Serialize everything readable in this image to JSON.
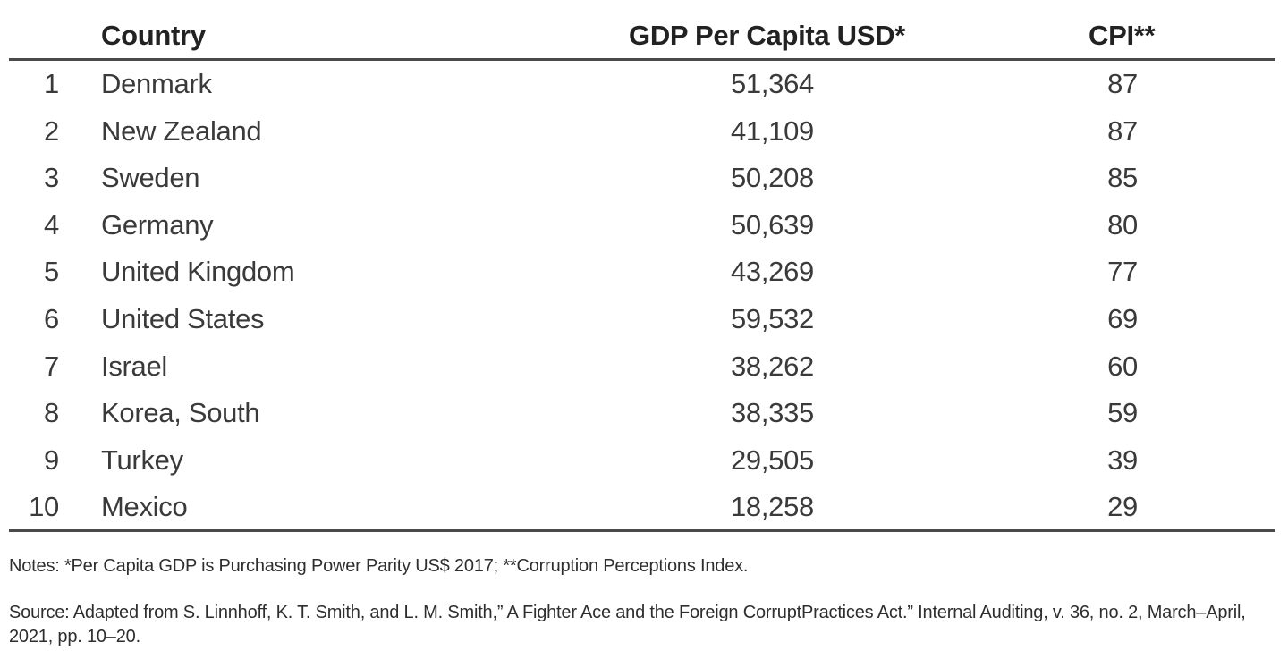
{
  "table": {
    "headers": {
      "country": "Country",
      "gdp": "GDP Per Capita USD*",
      "cpi": "CPI**"
    },
    "rows": [
      {
        "rank": "1",
        "country": "Denmark",
        "gdp": "51,364",
        "cpi": "87"
      },
      {
        "rank": "2",
        "country": "New Zealand",
        "gdp": "41,109",
        "cpi": "87"
      },
      {
        "rank": "3",
        "country": "Sweden",
        "gdp": "50,208",
        "cpi": "85"
      },
      {
        "rank": "4",
        "country": "Germany",
        "gdp": "50,639",
        "cpi": "80"
      },
      {
        "rank": "5",
        "country": "United Kingdom",
        "gdp": "43,269",
        "cpi": "77"
      },
      {
        "rank": "6",
        "country": "United States",
        "gdp": "59,532",
        "cpi": "69"
      },
      {
        "rank": "7",
        "country": "Israel",
        "gdp": "38,262",
        "cpi": "60"
      },
      {
        "rank": "8",
        "country": "Korea, South",
        "gdp": "38,335",
        "cpi": "59"
      },
      {
        "rank": "9",
        "country": "Turkey",
        "gdp": "29,505",
        "cpi": "39"
      },
      {
        "rank": "10",
        "country": "Mexico",
        "gdp": "18,258",
        "cpi": "29"
      }
    ]
  },
  "notes": "Notes: *Per Capita GDP is Purchasing Power Parity US$ 2017; **Corruption Perceptions Index.",
  "source": "Source: Adapted from S. Linnhoff, K. T. Smith, and L. M. Smith,” A Fighter Ace and the Foreign CorruptPractices Act.” Internal Auditing, v. 36, no. 2, March–April, 2021, pp. 10–20."
}
